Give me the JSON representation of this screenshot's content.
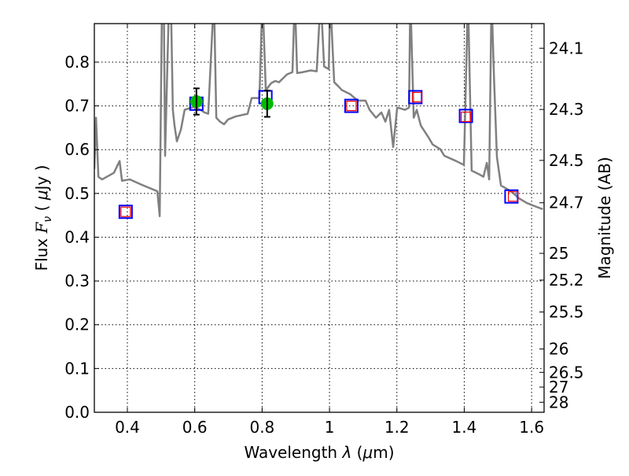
{
  "chart_data": {
    "type": "line",
    "xlabel": "Wavelength  λ (μm)",
    "ylabel": "Flux  F_ν  ( μJy )",
    "ylabel_parts": {
      "prefix": "Flux  ",
      "symbol": "F",
      "subscript": "ν",
      "unit_open": "  ( ",
      "mu": "μ",
      "unit": "Jy )"
    },
    "xlabel_parts": {
      "prefix": "Wavelength  ",
      "symbol": "λ",
      "unit": " (",
      "mu": "μ",
      "unit_end": "m)"
    },
    "y2label": "Magnitude (AB)",
    "xlim": [
      0.302,
      1.637
    ],
    "ylim": [
      0.0,
      0.888
    ],
    "grid": true,
    "xticks": [
      0.4,
      0.6,
      0.8,
      1,
      1.2,
      1.4,
      1.6
    ],
    "xtick_labels": [
      "0.4",
      "0.6",
      "0.8",
      "1",
      "1.2",
      "1.4",
      "1.6"
    ],
    "yticks": [
      0.0,
      0.1,
      0.2,
      0.3,
      0.4,
      0.5,
      0.6,
      0.7,
      0.8
    ],
    "ytick_labels": [
      "0.0",
      "0.1",
      "0.2",
      "0.3",
      "0.4",
      "0.5",
      "0.6",
      "0.7",
      "0.8"
    ],
    "y2ticks": [
      24.1,
      24.3,
      24.5,
      24.7,
      25,
      25.2,
      25.5,
      26,
      26.5,
      27,
      28
    ],
    "y2tick_labels": [
      "24.1",
      "24.3",
      "24.5",
      "24.7",
      "25",
      "25.2",
      "25.5",
      "26",
      "26.5",
      "27",
      "28"
    ],
    "mag_zeropoint": 23.9,
    "colors": {
      "spectrum": "#808080",
      "observed": "#00bb00",
      "model_band": "#0000ff",
      "model_point": "#ff0000",
      "errorbar": "#000000"
    },
    "series": [
      {
        "name": "spectrum",
        "kind": "line",
        "x": [
          0.302,
          0.307,
          0.314,
          0.325,
          0.36,
          0.377,
          0.384,
          0.407,
          0.442,
          0.489,
          0.496,
          0.503,
          0.508,
          0.512,
          0.524,
          0.529,
          0.535,
          0.54,
          0.547,
          0.559,
          0.57,
          0.582,
          0.598,
          0.617,
          0.629,
          0.64,
          0.657,
          0.664,
          0.675,
          0.687,
          0.699,
          0.722,
          0.757,
          0.769,
          0.792,
          0.801,
          0.811,
          0.827,
          0.839,
          0.85,
          0.862,
          0.874,
          0.89,
          0.897,
          0.904,
          0.92,
          0.944,
          0.962,
          0.974,
          0.984,
          0.998,
          1.002,
          1.014,
          1.026,
          1.037,
          1.061,
          1.084,
          1.107,
          1.119,
          1.138,
          1.154,
          1.166,
          1.177,
          1.189,
          1.201,
          1.212,
          1.224,
          1.236,
          1.24,
          1.25,
          1.259,
          1.271,
          1.294,
          1.306,
          1.329,
          1.341,
          1.376,
          1.399,
          1.411,
          1.422,
          1.446,
          1.457,
          1.467,
          1.474,
          1.481,
          1.488,
          1.497,
          1.509,
          1.539,
          1.562,
          1.586,
          1.609,
          1.633
        ],
        "y": [
          0.556,
          0.673,
          0.538,
          0.532,
          0.547,
          0.574,
          0.529,
          0.532,
          0.52,
          0.505,
          0.448,
          0.95,
          0.95,
          0.586,
          0.95,
          0.95,
          0.691,
          0.655,
          0.619,
          0.646,
          0.691,
          0.694,
          0.698,
          0.691,
          0.685,
          0.682,
          0.95,
          0.673,
          0.664,
          0.658,
          0.669,
          0.676,
          0.682,
          0.718,
          0.718,
          0.95,
          0.736,
          0.752,
          0.757,
          0.754,
          0.763,
          0.772,
          0.777,
          0.95,
          0.775,
          0.777,
          0.781,
          0.779,
          0.95,
          0.79,
          0.784,
          0.95,
          0.754,
          0.745,
          0.736,
          0.727,
          0.712,
          0.712,
          0.691,
          0.673,
          0.685,
          0.664,
          0.691,
          0.606,
          0.696,
          0.694,
          0.691,
          0.696,
          0.95,
          0.673,
          0.691,
          0.655,
          0.628,
          0.612,
          0.601,
          0.586,
          0.574,
          0.565,
          0.95,
          0.552,
          0.543,
          0.538,
          0.57,
          0.532,
          0.95,
          0.772,
          0.583,
          0.518,
          0.505,
          0.489,
          0.478,
          0.471,
          0.464
        ]
      },
      {
        "name": "observed",
        "kind": "errorbar",
        "x": [
          0.605,
          0.815
        ],
        "y": [
          0.71,
          0.705
        ],
        "yerr": [
          0.03,
          0.03
        ]
      },
      {
        "name": "model_band",
        "kind": "square-large",
        "x": [
          0.395,
          0.605,
          0.81,
          1.065,
          1.255,
          1.405,
          1.54
        ],
        "y": [
          0.458,
          0.705,
          0.72,
          0.7,
          0.72,
          0.677,
          0.493
        ]
      },
      {
        "name": "model_point",
        "kind": "square-small",
        "x": [
          0.395,
          1.065,
          1.26,
          1.405,
          1.545
        ],
        "y": [
          0.458,
          0.7,
          0.72,
          0.675,
          0.493
        ]
      }
    ]
  }
}
